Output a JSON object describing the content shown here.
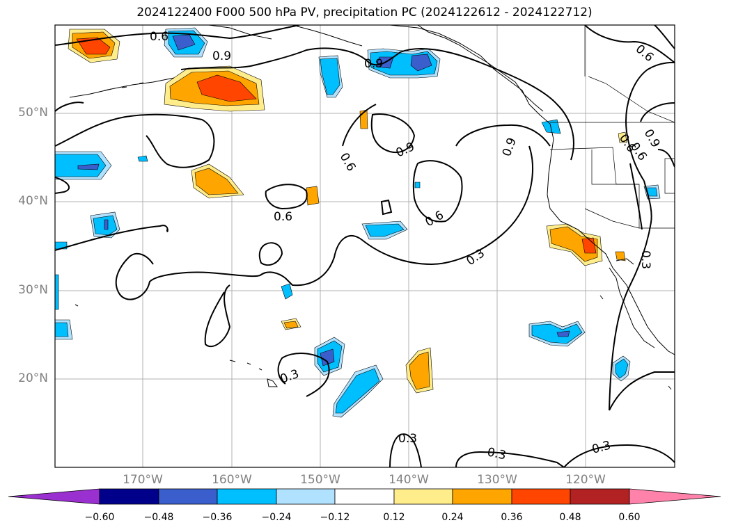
{
  "title": "2024122400 F000 500 hPa PV, precipitation PC (2024122612 - 2024122712)",
  "lat_labels": [
    "50°N",
    "40°N",
    "30°N",
    "20°N"
  ],
  "lon_labels": [
    "170°W",
    "160°W",
    "150°W",
    "140°W",
    "130°W",
    "120°W"
  ],
  "contour_labels": [
    "0.6",
    "0.9",
    "0.9",
    "0.6",
    "0.6",
    "0.9",
    "0.9",
    "0.6",
    "0.6",
    "0.6",
    "0.3",
    "0.6",
    "0.9",
    "0.3",
    "0.3",
    "0.3",
    "0.3",
    "0.3"
  ],
  "colorbar": {
    "ticks": [
      "−0.60",
      "−0.48",
      "−0.36",
      "−0.24",
      "−0.12",
      "0.12",
      "0.24",
      "0.36",
      "0.48",
      "0.60"
    ],
    "colors": [
      "#9b30d0",
      "#00008b",
      "#3a5fcd",
      "#00bfff",
      "#b0e2ff",
      "#ffffff",
      "#ffec8b",
      "#ffa500",
      "#ff4500",
      "#b22222",
      "#ff82ab"
    ]
  },
  "colors": {
    "neg_strong": "#3a5fcd",
    "neg_mid": "#00bfff",
    "neg_weak": "#b0e2ff",
    "pos_weak": "#ffec8b",
    "pos_mid": "#ffa500",
    "pos_strong": "#ff4500"
  }
}
